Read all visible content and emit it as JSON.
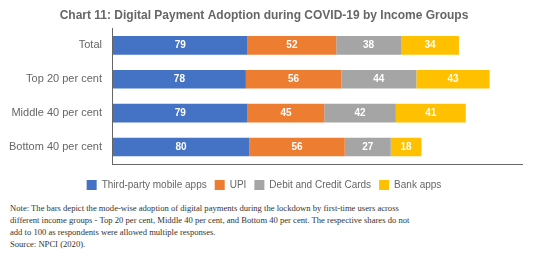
{
  "chart_data": {
    "type": "bar",
    "orientation": "horizontal",
    "stacked": true,
    "title": "Chart 11: Digital Payment Adoption during COVID-19 by Income Groups",
    "categories": [
      "Total",
      "Top 20 per cent",
      "Middle 40 per cent",
      "Bottom 40 per cent"
    ],
    "series": [
      {
        "name": "Third-party mobile apps",
        "color": "#4472C4",
        "values": [
          79,
          78,
          79,
          80
        ]
      },
      {
        "name": "UPI",
        "color": "#ED7D31",
        "values": [
          52,
          56,
          45,
          56
        ]
      },
      {
        "name": "Debit and Credit Cards",
        "color": "#A5A5A5",
        "values": [
          38,
          44,
          42,
          27
        ]
      },
      {
        "name": "Bank apps",
        "color": "#FFC000",
        "values": [
          34,
          43,
          41,
          18
        ]
      }
    ],
    "xlim": [
      0,
      240
    ],
    "grid": false,
    "legend": "bottom",
    "data_labels": true,
    "tick_labels": "y",
    "annotations": [
      "Note: The bars depict the mode-wise adoption of digital payments during the lockdown by first-time users across",
      "different income groups - Top 20 per cent, Middle 40 per cent, and Bottom 40 per cent. The respective shares do not",
      "add to 100 as respondents were allowed multiple responses.",
      "Source: NPCI (2020)."
    ]
  }
}
